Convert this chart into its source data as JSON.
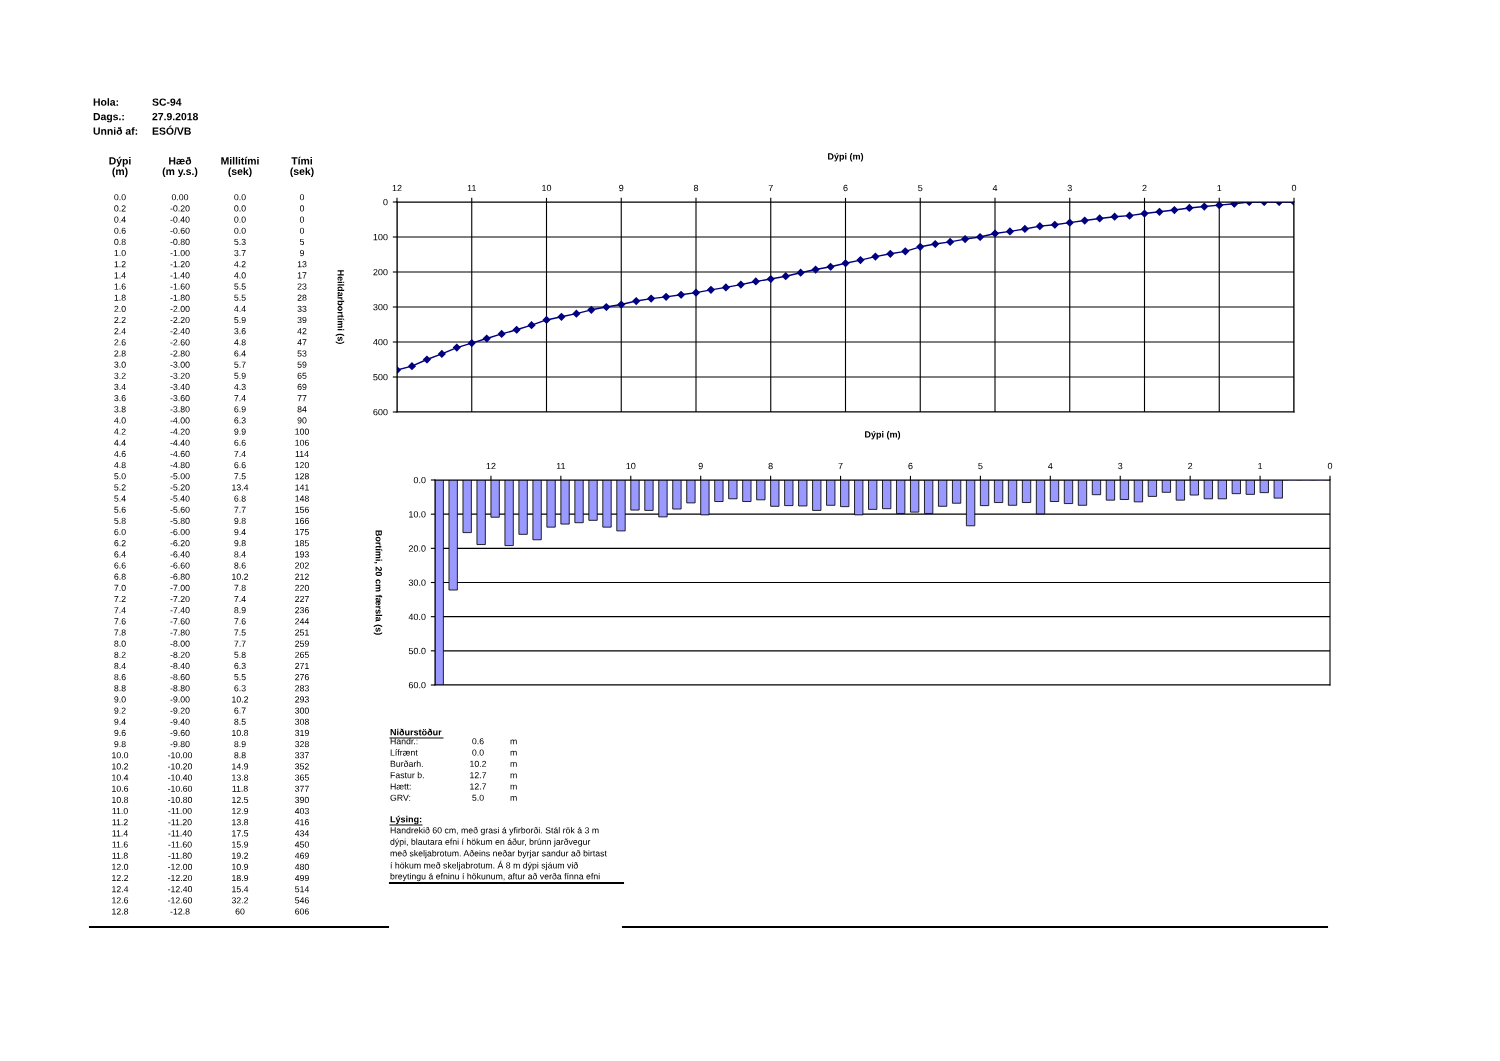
{
  "chart_data": [
    {
      "type": "other",
      "annotations": [
        "Hola:",
        "SC-94",
        "Dags.:",
        "27.9.2018",
        "Unnið af:",
        "ESÓ/VB",
        "Dýpi\n(m)",
        "Hæð\n(m y.s.)",
        "Millitími\n(sek)",
        "Tími\n(sek)",
        "0.0",
        "0.00",
        "0.0",
        "0",
        "0.2",
        "-0.20",
        "0.0",
        "0",
        "0.4",
        "-0.40",
        "0.0",
        "0",
        "0.6",
        "-0.60",
        "0.0",
        "0",
        "0.8",
        "-0.80",
        "5.3",
        "5",
        "1.0",
        "-1.00",
        "3.7",
        "9",
        "1.2",
        "-1.20",
        "4.2",
        "13",
        "1.4",
        "-1.40",
        "4.0",
        "17",
        "1.6",
        "-1.60",
        "5.5",
        "23",
        "1.8",
        "-1.80",
        "5.5",
        "28",
        "2.0",
        "-2.00",
        "4.4",
        "33",
        "2.2",
        "-2.20",
        "5.9",
        "39",
        "2.4",
        "-2.40",
        "3.6",
        "42",
        "2.6",
        "-2.60",
        "4.8",
        "47",
        "2.8",
        "-2.80",
        "6.4",
        "53",
        "3.0",
        "-3.00",
        "5.7",
        "59",
        "3.2",
        "-3.20",
        "5.9",
        "65",
        "3.4",
        "-3.40",
        "4.3",
        "69",
        "3.6",
        "-3.60",
        "7.4",
        "77",
        "3.8",
        "-3.80",
        "6.9",
        "84",
        "4.0",
        "-4.00",
        "6.3",
        "90",
        "4.2",
        "-4.20",
        "9.9",
        "100",
        "4.4",
        "-4.40",
        "6.6",
        "106",
        "4.6",
        "-4.60",
        "7.4",
        "114",
        "4.8",
        "-4.80",
        "6.6",
        "120",
        "5.0",
        "-5.00",
        "7.5",
        "128",
        "5.2",
        "-5.20",
        "13.4",
        "141",
        "5.4",
        "-5.40",
        "6.8",
        "148",
        "5.6",
        "-5.60",
        "7.7",
        "156",
        "5.8",
        "-5.80",
        "9.8",
        "166",
        "6.0",
        "-6.00",
        "9.4",
        "175",
        "6.2",
        "-6.20",
        "9.8",
        "185",
        "6.4",
        "-6.40",
        "8.4",
        "193",
        "6.6",
        "-6.60",
        "8.6",
        "202",
        "6.8",
        "-6.80",
        "10.2",
        "212",
        "7.0",
        "-7.00",
        "7.8",
        "220",
        "7.2",
        "-7.20",
        "7.4",
        "227",
        "7.4",
        "-7.40",
        "8.9",
        "236",
        "7.6",
        "-7.60",
        "7.6",
        "244",
        "7.8",
        "-7.80",
        "7.5",
        "251",
        "8.0",
        "-8.00",
        "7.7",
        "259",
        "8.2",
        "-8.20",
        "5.8",
        "265",
        "8.4",
        "-8.40",
        "6.3",
        "271",
        "8.6",
        "-8.60",
        "5.5",
        "276",
        "8.8",
        "-8.80",
        "6.3",
        "283",
        "9.0",
        "-9.00",
        "10.2",
        "293",
        "9.2",
        "-9.20",
        "6.7",
        "300",
        "9.4",
        "-9.40",
        "8.5",
        "308",
        "9.6",
        "-9.60",
        "10.8",
        "319",
        "9.8",
        "-9.80",
        "8.9",
        "328",
        "10.0",
        "-10.00",
        "8.8",
        "337",
        "10.2",
        "-10.20",
        "14.9",
        "352",
        "10.4",
        "-10.40",
        "13.8",
        "365",
        "10.6",
        "-10.60",
        "11.8",
        "377",
        "10.8",
        "-10.80",
        "12.5",
        "390",
        "11.0",
        "-11.00",
        "12.9",
        "403",
        "11.2",
        "-11.20",
        "13.8",
        "416",
        "11.4",
        "-11.40",
        "17.5",
        "434",
        "11.6",
        "-11.60",
        "15.9",
        "450",
        "11.8",
        "-11.80",
        "19.2",
        "469",
        "12.0",
        "-12.00",
        "10.9",
        "480",
        "12.2",
        "-12.20",
        "18.9",
        "499",
        "12.4",
        "-12.40",
        "15.4",
        "514",
        "12.6",
        "-12.60",
        "32.2",
        "546",
        "12.8",
        "-12.8",
        "60",
        "606"
      ]
    },
    {
      "type": "line",
      "xlabel": "Dýpi (m)",
      "ylabel": "Heildarbortími (s)",
      "marker": "diamond",
      "line_style": "solid",
      "grid": true,
      "xlim": [
        12,
        0
      ],
      "xticks": [
        12,
        11,
        10,
        9,
        8,
        7,
        6,
        5,
        4,
        3,
        2,
        1,
        0
      ],
      "ylim": [
        600,
        0
      ],
      "yticks": [
        0,
        100,
        200,
        300,
        400,
        500,
        600
      ],
      "series": [
        {
          "color": "#000080",
          "x": [
            0.0,
            0.2,
            0.4,
            0.6,
            0.8,
            1.0,
            1.2,
            1.4,
            1.6,
            1.8,
            2.0,
            2.2,
            2.4,
            2.6,
            2.8,
            3.0,
            3.2,
            3.4,
            3.6,
            3.8,
            4.0,
            4.2,
            4.4,
            4.6,
            4.8,
            5.0,
            5.2,
            5.4,
            5.6,
            5.8,
            6.0,
            6.2,
            6.4,
            6.6,
            6.8,
            7.0,
            7.2,
            7.4,
            7.6,
            7.8,
            8.0,
            8.2,
            8.4,
            8.6,
            8.8,
            9.0,
            9.2,
            9.4,
            9.6,
            9.8,
            10.0,
            10.2,
            10.4,
            10.6,
            10.8,
            11.0,
            11.2,
            11.4,
            11.6,
            11.8,
            12.0
          ],
          "values": [
            0,
            0,
            0,
            0,
            5,
            9,
            13,
            17,
            23,
            28,
            33,
            39,
            42,
            47,
            53,
            59,
            65,
            69,
            77,
            84,
            90,
            100,
            106,
            114,
            120,
            128,
            141,
            148,
            156,
            166,
            175,
            185,
            193,
            202,
            212,
            220,
            227,
            236,
            244,
            251,
            259,
            265,
            271,
            276,
            283,
            293,
            300,
            308,
            319,
            328,
            337,
            352,
            365,
            377,
            390,
            403,
            416,
            434,
            450,
            469,
            480
          ]
        }
      ]
    },
    {
      "type": "bar",
      "xlabel": "Dýpi (m)",
      "ylabel": "Bortími, 20 cm færsla (s)",
      "grid": "y",
      "xlim": [
        12.8,
        0
      ],
      "xticks": [
        12,
        11,
        10,
        9,
        8,
        7,
        6,
        5,
        4,
        3,
        2,
        1,
        0
      ],
      "ylim": [
        60,
        0
      ],
      "yticks": [
        {
          "value": 0,
          "label": "0.0"
        },
        {
          "value": 10,
          "label": "10.0"
        },
        {
          "value": 20,
          "label": "20.0"
        },
        {
          "value": 30,
          "label": "30.0"
        },
        {
          "value": 40,
          "label": "40.0"
        },
        {
          "value": 50,
          "label": "50.0"
        },
        {
          "value": 60,
          "label": "60.0"
        }
      ],
      "series": [
        {
          "color": "#9999ff",
          "x": [
            0.0,
            0.2,
            0.4,
            0.6,
            0.8,
            1.0,
            1.2,
            1.4,
            1.6,
            1.8,
            2.0,
            2.2,
            2.4,
            2.6,
            2.8,
            3.0,
            3.2,
            3.4,
            3.6,
            3.8,
            4.0,
            4.2,
            4.4,
            4.6,
            4.8,
            5.0,
            5.2,
            5.4,
            5.6,
            5.8,
            6.0,
            6.2,
            6.4,
            6.6,
            6.8,
            7.0,
            7.2,
            7.4,
            7.6,
            7.8,
            8.0,
            8.2,
            8.4,
            8.6,
            8.8,
            9.0,
            9.2,
            9.4,
            9.6,
            9.8,
            10.0,
            10.2,
            10.4,
            10.6,
            10.8,
            11.0,
            11.2,
            11.4,
            11.6,
            11.8,
            12.0,
            12.2,
            12.4,
            12.6,
            12.8
          ],
          "values": [
            0.0,
            0.0,
            0.0,
            0.0,
            5.3,
            3.7,
            4.2,
            4.0,
            5.5,
            5.5,
            4.4,
            5.9,
            3.6,
            4.8,
            6.4,
            5.7,
            5.9,
            4.3,
            7.4,
            6.9,
            6.3,
            9.9,
            6.6,
            7.4,
            6.6,
            7.5,
            13.4,
            6.8,
            7.7,
            9.8,
            9.4,
            9.8,
            8.4,
            8.6,
            10.2,
            7.8,
            7.4,
            8.9,
            7.6,
            7.5,
            7.7,
            5.8,
            6.3,
            5.5,
            6.3,
            10.2,
            6.7,
            8.5,
            10.8,
            8.9,
            8.8,
            14.9,
            13.8,
            11.8,
            12.5,
            12.9,
            13.8,
            17.5,
            15.9,
            19.2,
            10.9,
            18.9,
            15.4,
            32.2,
            60
          ]
        }
      ]
    },
    {
      "type": "other",
      "title": "Niðurstöður",
      "subtitle": "Lýsing:",
      "annotations": [
        "Handr.:",
        "0.6",
        "m",
        "Lífrænt",
        "0.0",
        "m",
        "Burðarh.",
        "10.2",
        "m",
        "Fastur b.",
        "12.7",
        "m",
        "Hætt:",
        "12.7",
        "m",
        "GRV:",
        "5.0",
        "m",
        "Handrekið 60 cm, með grasi á yfirborði. Stál rök á 3 m",
        "dýpi, blautara efni í hökum en áður, brúnn jarðvegur",
        "með skeljabrotum. Aðeins neðar byrjar sandur að birtast",
        "í hökum með skeljabrotum. Á 8 m dýpi sjáum við",
        "breytingu á efninu í hökunum, aftur að verða fínna efni"
      ]
    }
  ]
}
